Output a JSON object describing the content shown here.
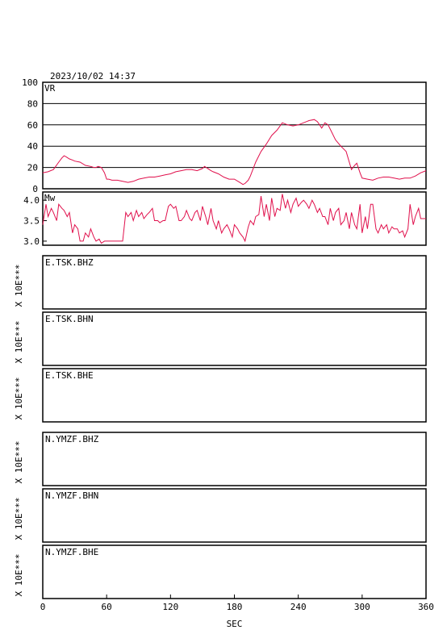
{
  "header": {
    "datetime": "2023/10/02  14:37"
  },
  "colors": {
    "series": "#e0104c",
    "axes": "#000000",
    "background": "#ffffff"
  },
  "chart_data": [
    {
      "type": "line",
      "id": "vr",
      "title": "VR",
      "xlim": [
        0,
        360
      ],
      "ylim": [
        0,
        100
      ],
      "yticks": [
        "0",
        "20",
        "40",
        "60",
        "80",
        "100"
      ],
      "grid": true,
      "x": [
        0,
        5,
        10,
        15,
        18,
        20,
        22,
        25,
        28,
        30,
        35,
        40,
        45,
        48,
        50,
        52,
        55,
        58,
        60,
        62,
        65,
        70,
        75,
        80,
        85,
        90,
        95,
        100,
        105,
        110,
        115,
        120,
        125,
        130,
        135,
        140,
        145,
        150,
        152,
        155,
        158,
        160,
        165,
        170,
        175,
        180,
        185,
        188,
        190,
        193,
        195,
        200,
        205,
        210,
        215,
        220,
        225,
        230,
        235,
        240,
        245,
        250,
        255,
        258,
        260,
        262,
        265,
        268,
        270,
        275,
        280,
        285,
        290,
        293,
        295,
        298,
        300,
        305,
        310,
        315,
        320,
        325,
        330,
        335,
        340,
        345,
        350,
        355,
        360
      ],
      "y": [
        15,
        16,
        18,
        25,
        29,
        31,
        30,
        28,
        27,
        26,
        25,
        22,
        21,
        20,
        20,
        21,
        20,
        15,
        9,
        9,
        8,
        8,
        7,
        6,
        7,
        9,
        10,
        11,
        11,
        12,
        13,
        14,
        16,
        17,
        18,
        18,
        17,
        19,
        21,
        19,
        17,
        16,
        14,
        11,
        9,
        9,
        6,
        4,
        5,
        8,
        12,
        25,
        35,
        42,
        50,
        55,
        62,
        60,
        59,
        60,
        62,
        64,
        65,
        63,
        60,
        57,
        62,
        60,
        56,
        46,
        40,
        35,
        18,
        22,
        24,
        15,
        10,
        9,
        8,
        10,
        11,
        11,
        10,
        9,
        10,
        10,
        12,
        15,
        17
      ]
    },
    {
      "type": "line",
      "id": "mw",
      "title": "Mw",
      "xlim": [
        0,
        360
      ],
      "ylim": [
        2.9,
        4.2
      ],
      "yticks": [
        "3.0",
        "3.5",
        "4.0"
      ],
      "grid": false,
      "x": [
        0,
        3,
        5,
        8,
        10,
        13,
        15,
        18,
        20,
        23,
        25,
        28,
        30,
        33,
        35,
        38,
        40,
        43,
        45,
        48,
        50,
        53,
        55,
        58,
        60,
        63,
        65,
        68,
        70,
        73,
        75,
        78,
        80,
        83,
        85,
        88,
        90,
        93,
        95,
        98,
        100,
        103,
        105,
        108,
        110,
        113,
        115,
        118,
        120,
        123,
        125,
        128,
        130,
        133,
        135,
        138,
        140,
        143,
        145,
        148,
        150,
        153,
        155,
        158,
        160,
        163,
        165,
        168,
        170,
        173,
        175,
        178,
        180,
        183,
        185,
        188,
        190,
        193,
        195,
        198,
        200,
        203,
        205,
        208,
        210,
        213,
        215,
        218,
        220,
        223,
        225,
        228,
        230,
        233,
        235,
        238,
        240,
        243,
        245,
        248,
        250,
        253,
        255,
        258,
        260,
        263,
        265,
        268,
        270,
        273,
        275,
        278,
        280,
        283,
        285,
        288,
        290,
        293,
        295,
        298,
        300,
        303,
        305,
        308,
        310,
        313,
        315,
        318,
        320,
        323,
        325,
        328,
        330,
        333,
        335,
        338,
        340,
        343,
        345,
        348,
        350,
        353,
        355,
        358,
        360
      ],
      "y": [
        3.4,
        3.9,
        3.6,
        3.8,
        3.7,
        3.5,
        3.9,
        3.8,
        3.75,
        3.6,
        3.7,
        3.2,
        3.4,
        3.3,
        3.0,
        3.0,
        3.2,
        3.1,
        3.3,
        3.1,
        3.0,
        3.05,
        2.95,
        3.0,
        3.0,
        3.0,
        3.0,
        3.0,
        3.0,
        3.0,
        3.0,
        3.7,
        3.6,
        3.7,
        3.5,
        3.75,
        3.6,
        3.7,
        3.55,
        3.65,
        3.7,
        3.8,
        3.5,
        3.5,
        3.45,
        3.5,
        3.5,
        3.85,
        3.9,
        3.8,
        3.85,
        3.5,
        3.5,
        3.6,
        3.75,
        3.55,
        3.5,
        3.7,
        3.75,
        3.5,
        3.85,
        3.6,
        3.4,
        3.8,
        3.5,
        3.3,
        3.5,
        3.2,
        3.3,
        3.4,
        3.3,
        3.1,
        3.4,
        3.3,
        3.2,
        3.1,
        3.0,
        3.35,
        3.5,
        3.4,
        3.6,
        3.65,
        4.1,
        3.6,
        3.9,
        3.5,
        4.05,
        3.6,
        3.8,
        3.75,
        4.15,
        3.8,
        4.0,
        3.7,
        3.9,
        4.05,
        3.85,
        3.95,
        4.0,
        3.9,
        3.8,
        4.0,
        3.9,
        3.7,
        3.8,
        3.6,
        3.6,
        3.4,
        3.8,
        3.5,
        3.7,
        3.8,
        3.4,
        3.5,
        3.7,
        3.3,
        3.7,
        3.4,
        3.3,
        3.9,
        3.2,
        3.6,
        3.3,
        3.9,
        3.9,
        3.3,
        3.2,
        3.4,
        3.3,
        3.4,
        3.2,
        3.35,
        3.3,
        3.3,
        3.2,
        3.25,
        3.1,
        3.3,
        3.9,
        3.4,
        3.6,
        3.8,
        3.55,
        3.55,
        3.55
      ]
    }
  ],
  "traces": [
    {
      "station": "E.TSK.BHZ",
      "scale_label": "X 10E***"
    },
    {
      "station": "E.TSK.BHN",
      "scale_label": "X 10E***"
    },
    {
      "station": "E.TSK.BHE",
      "scale_label": "X 10E***"
    },
    {
      "station": "N.YMZF.BHZ",
      "scale_label": "X 10E***"
    },
    {
      "station": "N.YMZF.BHN",
      "scale_label": "X 10E***"
    },
    {
      "station": "N.YMZF.BHE",
      "scale_label": "X 10E***"
    }
  ],
  "x_axis": {
    "label": "SEC",
    "ticks": [
      "0",
      "60",
      "120",
      "180",
      "240",
      "300",
      "360"
    ]
  }
}
